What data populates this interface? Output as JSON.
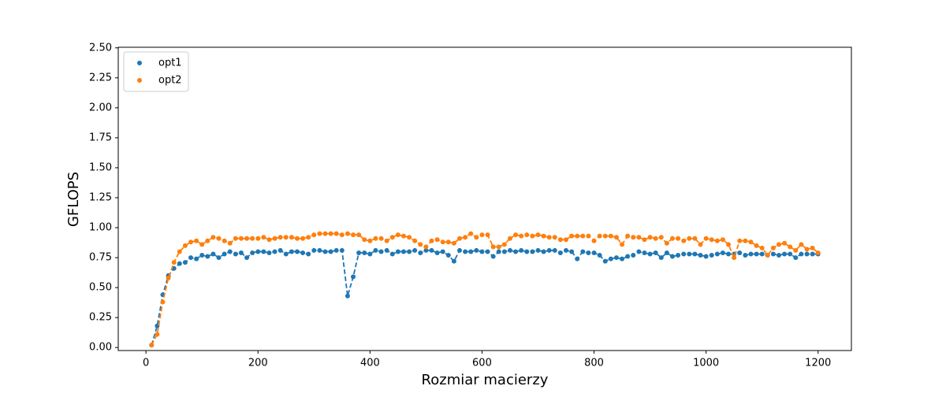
{
  "chart_data": {
    "type": "scatter",
    "xlabel": "Rozmiar macierzy",
    "ylabel": "GFLOPS",
    "x": [
      10,
      20,
      30,
      40,
      50,
      60,
      70,
      80,
      90,
      100,
      110,
      120,
      130,
      140,
      150,
      160,
      170,
      180,
      190,
      200,
      210,
      220,
      230,
      240,
      250,
      260,
      270,
      280,
      290,
      300,
      310,
      320,
      330,
      340,
      350,
      360,
      370,
      380,
      390,
      400,
      410,
      420,
      430,
      440,
      450,
      460,
      470,
      480,
      490,
      500,
      510,
      520,
      530,
      540,
      550,
      560,
      570,
      580,
      590,
      600,
      610,
      620,
      630,
      640,
      650,
      660,
      670,
      680,
      690,
      700,
      710,
      720,
      730,
      740,
      750,
      760,
      770,
      780,
      790,
      800,
      810,
      820,
      830,
      840,
      850,
      860,
      870,
      880,
      890,
      900,
      910,
      920,
      930,
      940,
      950,
      960,
      970,
      980,
      990,
      1000,
      1010,
      1020,
      1030,
      1040,
      1050,
      1060,
      1070,
      1080,
      1090,
      1100,
      1110,
      1120,
      1130,
      1140,
      1150,
      1160,
      1170,
      1180,
      1190,
      1200
    ],
    "series": [
      {
        "name": "opt1",
        "color": "#1f77b4",
        "values": [
          0.02,
          0.18,
          0.44,
          0.6,
          0.66,
          0.7,
          0.71,
          0.75,
          0.74,
          0.77,
          0.76,
          0.78,
          0.75,
          0.78,
          0.8,
          0.78,
          0.79,
          0.75,
          0.79,
          0.8,
          0.8,
          0.79,
          0.8,
          0.81,
          0.78,
          0.8,
          0.8,
          0.79,
          0.78,
          0.81,
          0.81,
          0.8,
          0.8,
          0.81,
          0.81,
          0.43,
          0.59,
          0.79,
          0.79,
          0.78,
          0.81,
          0.8,
          0.81,
          0.78,
          0.8,
          0.8,
          0.8,
          0.81,
          0.79,
          0.81,
          0.81,
          0.79,
          0.8,
          0.77,
          0.72,
          0.81,
          0.8,
          0.8,
          0.81,
          0.8,
          0.8,
          0.76,
          0.8,
          0.8,
          0.81,
          0.8,
          0.81,
          0.8,
          0.8,
          0.81,
          0.8,
          0.81,
          0.81,
          0.79,
          0.81,
          0.8,
          0.74,
          0.8,
          0.79,
          0.79,
          0.77,
          0.72,
          0.74,
          0.75,
          0.74,
          0.76,
          0.77,
          0.8,
          0.79,
          0.78,
          0.79,
          0.75,
          0.79,
          0.76,
          0.77,
          0.78,
          0.78,
          0.78,
          0.77,
          0.76,
          0.77,
          0.78,
          0.79,
          0.78,
          0.78,
          0.79,
          0.77,
          0.78,
          0.78,
          0.78,
          0.77,
          0.78,
          0.77,
          0.78,
          0.78,
          0.75,
          0.78,
          0.78,
          0.78,
          0.78
        ]
      },
      {
        "name": "opt2",
        "color": "#ff7f0e",
        "values": [
          0.02,
          0.11,
          0.38,
          0.58,
          0.71,
          0.8,
          0.85,
          0.88,
          0.89,
          0.86,
          0.89,
          0.92,
          0.91,
          0.89,
          0.87,
          0.91,
          0.91,
          0.91,
          0.91,
          0.91,
          0.92,
          0.9,
          0.91,
          0.92,
          0.92,
          0.92,
          0.91,
          0.91,
          0.92,
          0.94,
          0.95,
          0.95,
          0.95,
          0.95,
          0.94,
          0.95,
          0.94,
          0.94,
          0.9,
          0.89,
          0.91,
          0.91,
          0.89,
          0.92,
          0.94,
          0.93,
          0.92,
          0.89,
          0.86,
          0.84,
          0.89,
          0.9,
          0.88,
          0.88,
          0.87,
          0.91,
          0.92,
          0.95,
          0.92,
          0.94,
          0.94,
          0.84,
          0.84,
          0.86,
          0.91,
          0.94,
          0.93,
          0.94,
          0.93,
          0.94,
          0.93,
          0.92,
          0.92,
          0.9,
          0.9,
          0.93,
          0.93,
          0.93,
          0.93,
          0.89,
          0.93,
          0.93,
          0.93,
          0.92,
          0.86,
          0.93,
          0.92,
          0.92,
          0.9,
          0.92,
          0.91,
          0.92,
          0.87,
          0.91,
          0.91,
          0.89,
          0.91,
          0.91,
          0.86,
          0.91,
          0.9,
          0.89,
          0.9,
          0.86,
          0.75,
          0.89,
          0.89,
          0.88,
          0.85,
          0.83,
          0.77,
          0.83,
          0.86,
          0.87,
          0.84,
          0.81,
          0.86,
          0.82,
          0.83,
          0.79
        ]
      }
    ],
    "xlim": [
      -49.5,
      1259.5
    ],
    "ylim": [
      -0.025,
      2.505
    ],
    "xticks": [
      0,
      200,
      400,
      600,
      800,
      1000,
      1200
    ],
    "yticks": [
      {
        "value": 0,
        "label": "0.00"
      },
      0.25,
      {
        "value": 0.5,
        "label": "0.50"
      },
      0.75,
      {
        "value": 1,
        "label": "1.00"
      },
      1.25,
      {
        "value": 1.5,
        "label": "1.50"
      },
      1.75,
      {
        "value": 2,
        "label": "2.00"
      },
      2.25,
      {
        "value": 2.5,
        "label": "2.50"
      }
    ],
    "legend": "upper left",
    "line_style": "dashed"
  }
}
